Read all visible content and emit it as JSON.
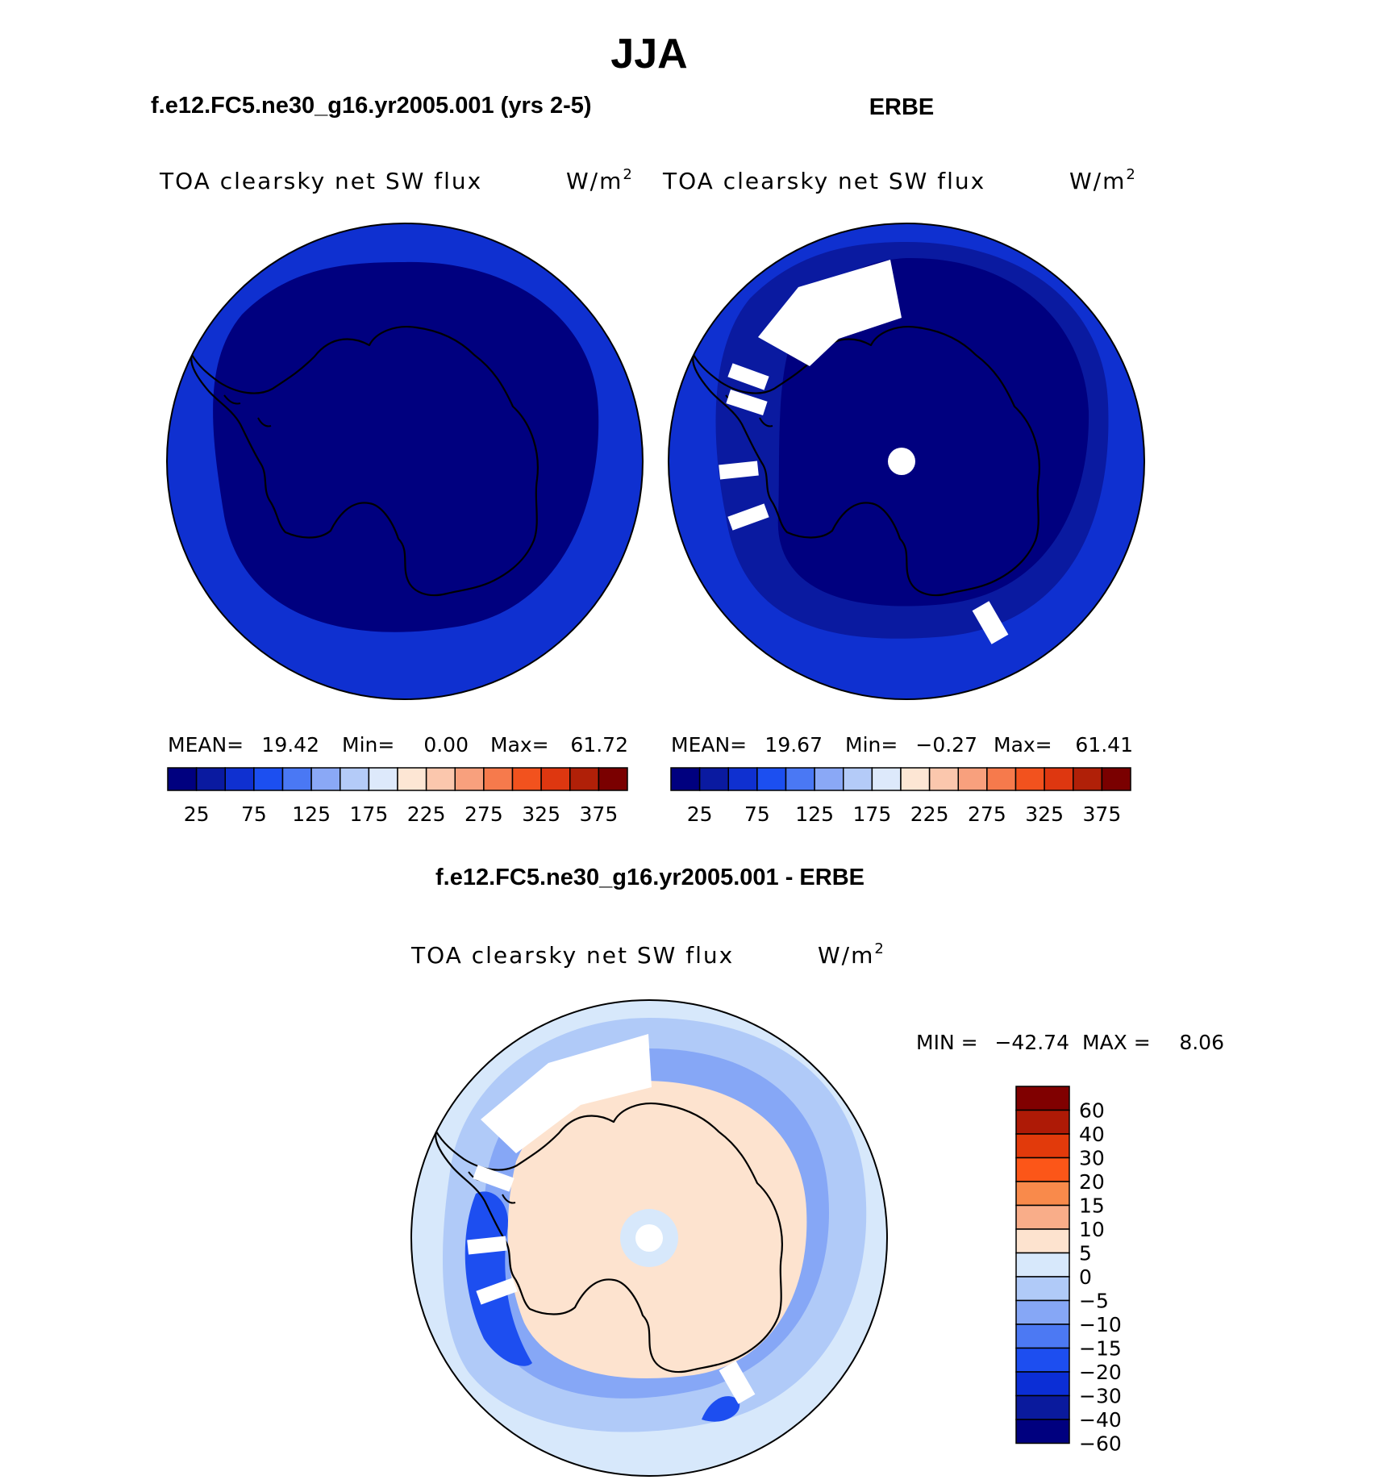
{
  "figure": {
    "title": "JJA",
    "left_panel_title": "f.e12.FC5.ne30_g16.yr2005.001 (yrs 2-5)",
    "right_panel_title": "ERBE",
    "diff_panel_title": "f.e12.FC5.ne30_g16.yr2005.001 - ERBE"
  },
  "panels": {
    "model": {
      "variable": "TOA clearsky net SW flux",
      "units": "W/m",
      "units_sup": "2",
      "mean_label": "MEAN=",
      "mean": "19.42",
      "min_label": "Min=",
      "min": "0.00",
      "max_label": "Max=",
      "max": "61.72"
    },
    "obs": {
      "variable": "TOA clearsky net SW flux",
      "units": "W/m",
      "units_sup": "2",
      "mean_label": "MEAN=",
      "mean": "19.67",
      "min_label": "Min=",
      "min": "−0.27",
      "max_label": "Max=",
      "max": "61.41"
    },
    "diff": {
      "variable": "TOA clearsky net SW flux",
      "units": "W/m",
      "units_sup": "2",
      "min_label": "MIN =",
      "min": "−42.74",
      "max_label": "MAX =",
      "max": "8.06"
    }
  },
  "colorbars": {
    "abs_colors": [
      "#00007f",
      "#0a1aa0",
      "#0f30d0",
      "#1c4ff0",
      "#4a78f4",
      "#8aa8f6",
      "#b4cbf8",
      "#dde9fb",
      "#fde6d4",
      "#fbc7ad",
      "#f8a07d",
      "#f67a4c",
      "#f2521e",
      "#de3710",
      "#b02008",
      "#7a0000"
    ],
    "abs_labels": [
      "25",
      "75",
      "125",
      "175",
      "225",
      "275",
      "325",
      "375"
    ],
    "diff_colors": [
      "#800000",
      "#ae1a06",
      "#e23a0b",
      "#fc5618",
      "#f98a4b",
      "#f9ad89",
      "#fde3cf",
      "#d7e8fb",
      "#b0caf8",
      "#86a7f6",
      "#4c79f3",
      "#1d4ef0",
      "#0b2ed6",
      "#0a1a9d",
      "#00007f"
    ],
    "diff_labels": [
      "60",
      "40",
      "30",
      "20",
      "15",
      "10",
      "5",
      "0",
      "−5",
      "−10",
      "−15",
      "−20",
      "−30",
      "−40",
      "−60"
    ]
  },
  "map_fields": {
    "model": {
      "outer": "#0f30d0",
      "inner": "#00007f"
    },
    "obs": {
      "outer": "#0f30d0",
      "mid": "#0a1aa0",
      "inner": "#00007f",
      "missing": "#ffffff"
    },
    "diff": {
      "background": "#d7e8fb",
      "ring_light": "#b0caf8",
      "ring_mid": "#86a7f6",
      "ring_strong": "#1d4ef0",
      "interior": "#fde3cf",
      "pole_ring": "#d7e8fb"
    }
  }
}
